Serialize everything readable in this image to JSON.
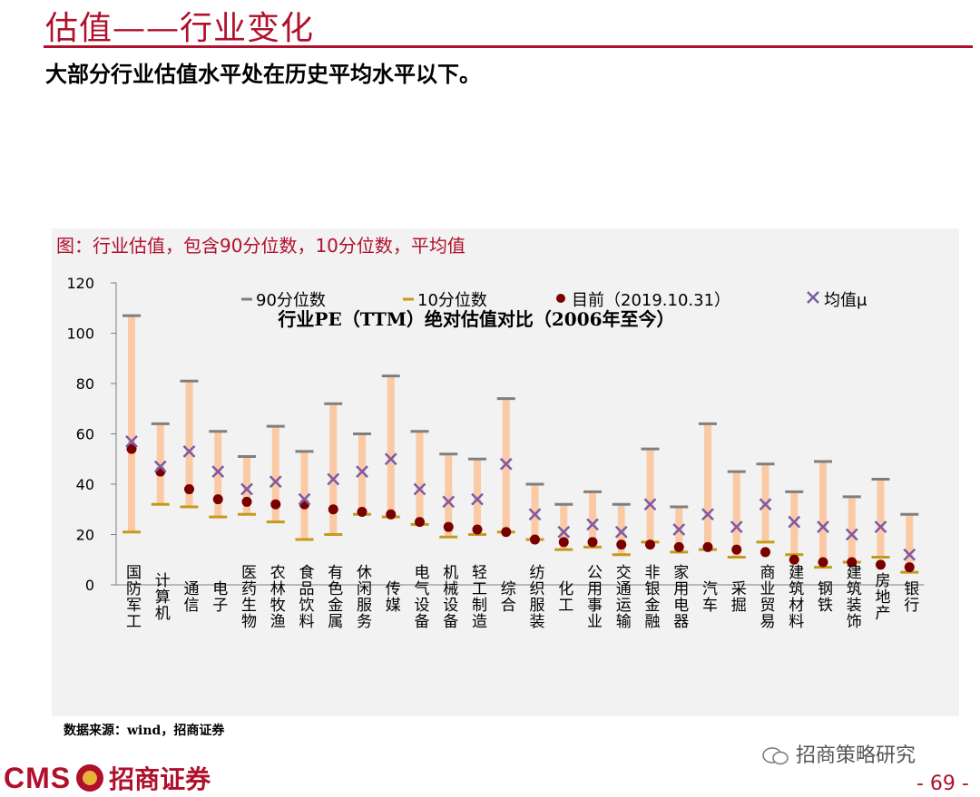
{
  "header": {
    "title": "估值——行业变化",
    "subtitle": "大部分行业估值水平处在历史平均水平以下。"
  },
  "figure": {
    "caption": "图：行业估值，包含90分位数，10分位数，平均值",
    "source": "数据来源：wind，招商证券"
  },
  "footer": {
    "wechat": "招商策略研究",
    "logo_latin": "CMS",
    "logo_cn": "招商证券",
    "page_number": "- 69 -"
  },
  "colors": {
    "accent": "#b0102b",
    "range_bar": "#fbc9a4",
    "p90_tick": "#7f7f7f",
    "p10_tick": "#c49a1a",
    "current_dot": "#7a0000",
    "mean_marker": "#7b5aa6"
  },
  "chart_data": {
    "type": "range",
    "title": "行业PE（TTM）绝对估值对比（2006年至今）",
    "ylim": [
      0,
      120
    ],
    "yticks": [
      "0",
      "20",
      "40",
      "60",
      "80",
      "100",
      "120"
    ],
    "legend": {
      "p90": "90分位数",
      "p10": "10分位数",
      "current": "目前（2019.10.31）",
      "mean": "均值μ",
      "placement": "top"
    },
    "categories": [
      "国防军工",
      "计算机",
      "通信",
      "电子",
      "医药生物",
      "农林牧渔",
      "食品饮料",
      "有色金属",
      "休闲服务",
      "传媒",
      "电气设备",
      "机械设备",
      "轻工制造",
      "综合",
      "纺织服装",
      "化工",
      "公用事业",
      "交通运输",
      "非银金融",
      "家用电器",
      "汽车",
      "采掘",
      "商业贸易",
      "建筑材料",
      "钢铁",
      "建筑装饰",
      "房地产",
      "银行"
    ],
    "series": [
      {
        "key": "p90",
        "name": "90分位数",
        "values": [
          107,
          64,
          81,
          61,
          51,
          63,
          53,
          72,
          60,
          83,
          61,
          52,
          50,
          74,
          40,
          32,
          37,
          32,
          54,
          31,
          64,
          45,
          48,
          37,
          49,
          35,
          42,
          28
        ]
      },
      {
        "key": "p10",
        "name": "10分位数",
        "values": [
          21,
          32,
          31,
          27,
          28,
          25,
          18,
          20,
          28,
          27,
          24,
          19,
          20,
          21,
          18,
          14,
          15,
          12,
          17,
          13,
          14,
          11,
          17,
          12,
          7,
          9,
          11,
          5
        ]
      },
      {
        "key": "current",
        "name": "目前（2019.10.31）",
        "values": [
          54,
          45,
          38,
          34,
          33,
          32,
          32,
          30,
          29,
          28,
          25,
          23,
          22,
          21,
          18,
          17,
          17,
          16,
          16,
          15,
          15,
          14,
          13,
          10,
          9,
          9,
          8,
          7
        ]
      },
      {
        "key": "mean",
        "name": "均值μ",
        "values": [
          57,
          47,
          53,
          45,
          38,
          41,
          34,
          42,
          45,
          50,
          38,
          33,
          34,
          48,
          28,
          21,
          24,
          21,
          32,
          22,
          28,
          23,
          32,
          25,
          23,
          20,
          23,
          12
        ]
      }
    ]
  }
}
